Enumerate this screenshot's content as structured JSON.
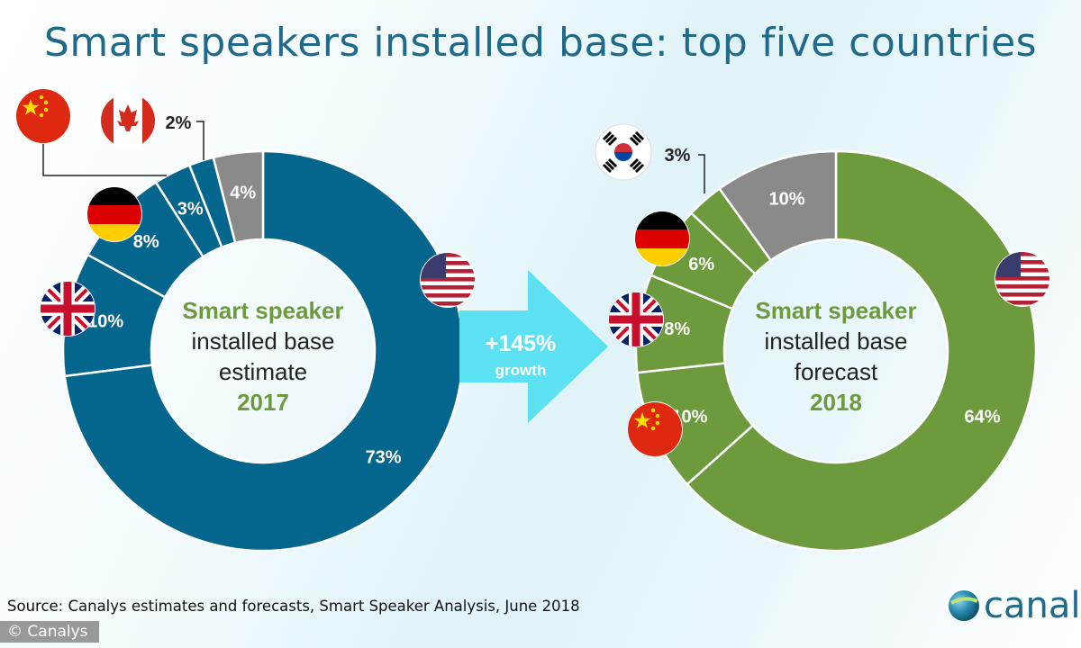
{
  "title": "Smart speakers installed base: top five countries",
  "source": "Source: Canalys estimates and forecasts, Smart Speaker Analysis, June 2018",
  "copyright": "© Canalys",
  "logo_text": "canaly",
  "arrow": {
    "value": "+145%",
    "label": "growth"
  },
  "chart_data": [
    {
      "type": "pie",
      "title": "Smart speaker installed base estimate 2017",
      "center_lines": [
        "Smart speaker",
        "installed base",
        "estimate",
        "2017"
      ],
      "color": "#05668d",
      "slices": [
        {
          "country": "USA",
          "value": 73,
          "label": "73%"
        },
        {
          "country": "UK",
          "value": 10,
          "label": "10%"
        },
        {
          "country": "Germany",
          "value": 8,
          "label": "8%"
        },
        {
          "country": "China",
          "value": 3,
          "label": "3%"
        },
        {
          "country": "Canada",
          "value": 2,
          "label": "2%"
        },
        {
          "country": "Others",
          "value": 4,
          "label": "4%"
        }
      ]
    },
    {
      "type": "pie",
      "title": "Smart speaker installed base forecast 2018",
      "center_lines": [
        "Smart speaker",
        "installed base",
        "forecast",
        "2018"
      ],
      "color": "#6e9a3e",
      "slices": [
        {
          "country": "USA",
          "value": 64,
          "label": "64%"
        },
        {
          "country": "China",
          "value": 10,
          "label": "10%"
        },
        {
          "country": "UK",
          "value": 8,
          "label": "8%"
        },
        {
          "country": "Germany",
          "value": 6,
          "label": "6%"
        },
        {
          "country": "South Korea",
          "value": 3,
          "label": "3%"
        },
        {
          "country": "Others",
          "value": 10,
          "label": "10%"
        }
      ]
    }
  ],
  "colors": {
    "others": "#8a8a8a",
    "accent_green": "#6e9a3e",
    "title_blue": "#1f6a8a",
    "arrow": "#5ce1f3"
  }
}
